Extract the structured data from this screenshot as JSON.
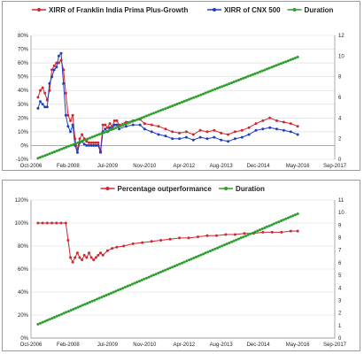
{
  "chart_data": [
    {
      "type": "line",
      "title": "",
      "legend": {
        "placement": "top",
        "entries": [
          "XIRR of Franklin India Prima Plus-Growth",
          "XIRR of CNX 500",
          "Duration"
        ]
      },
      "x_ticks": [
        "Oct-2006",
        "Feb-2008",
        "Jul-2009",
        "Nov-2010",
        "Apr-2012",
        "Aug-2013",
        "Dec-2014",
        "May-2016",
        "Sep-2017"
      ],
      "x_range": [
        "2006-10",
        "2017-09"
      ],
      "y_left": {
        "ticks": [
          "-10%",
          "0%",
          "10%",
          "20%",
          "30%",
          "40%",
          "50%",
          "60%",
          "70%",
          "80%"
        ],
        "range": [
          -10,
          80
        ]
      },
      "y_right": {
        "ticks": [
          "0",
          "2",
          "4",
          "6",
          "8",
          "10",
          "12"
        ],
        "range": [
          0,
          12
        ]
      },
      "grid": true,
      "series": [
        {
          "name": "XIRR of Franklin India Prima Plus-Growth",
          "color": "#d0282e",
          "axis": "left",
          "x": [
            "2007-01",
            "2007-02",
            "2007-03",
            "2007-04",
            "2007-05",
            "2007-06",
            "2007-07",
            "2007-08",
            "2007-09",
            "2007-10",
            "2007-11",
            "2007-12",
            "2008-01",
            "2008-02",
            "2008-03",
            "2008-04",
            "2008-05",
            "2008-06",
            "2008-07",
            "2008-08",
            "2008-09",
            "2008-10",
            "2008-11",
            "2008-12",
            "2009-01",
            "2009-02",
            "2009-03",
            "2009-04",
            "2009-05",
            "2009-06",
            "2009-07",
            "2009-08",
            "2009-09",
            "2009-10",
            "2009-11",
            "2009-12",
            "2010-03",
            "2010-06",
            "2010-09",
            "2010-11",
            "2011-02",
            "2011-05",
            "2011-08",
            "2011-11",
            "2012-02",
            "2012-05",
            "2012-08",
            "2012-11",
            "2013-02",
            "2013-05",
            "2013-08",
            "2013-11",
            "2014-02",
            "2014-05",
            "2014-08",
            "2014-11",
            "2015-02",
            "2015-05",
            "2015-08",
            "2015-11",
            "2016-02",
            "2016-05"
          ],
          "values": [
            35,
            40,
            42,
            38,
            33,
            40,
            55,
            58,
            60,
            60,
            62,
            55,
            38,
            22,
            18,
            22,
            5,
            -3,
            5,
            8,
            5,
            3,
            2,
            2,
            2,
            2,
            2,
            -4,
            15,
            15,
            13,
            16,
            14,
            18,
            18,
            15,
            17,
            18,
            19,
            16,
            15,
            14,
            12,
            10,
            9,
            10,
            8,
            11,
            10,
            11,
            9,
            8,
            10,
            11,
            13,
            16,
            18,
            20,
            18,
            17,
            16,
            14
          ]
        },
        {
          "name": "XIRR of CNX 500",
          "color": "#1f3fbf",
          "axis": "left",
          "x": [
            "2007-01",
            "2007-02",
            "2007-03",
            "2007-04",
            "2007-05",
            "2007-06",
            "2007-07",
            "2007-08",
            "2007-09",
            "2007-10",
            "2007-11",
            "2007-12",
            "2008-01",
            "2008-02",
            "2008-03",
            "2008-04",
            "2008-05",
            "2008-06",
            "2008-07",
            "2008-08",
            "2008-09",
            "2008-10",
            "2008-11",
            "2008-12",
            "2009-01",
            "2009-02",
            "2009-03",
            "2009-04",
            "2009-05",
            "2009-06",
            "2009-07",
            "2009-08",
            "2009-09",
            "2009-10",
            "2009-11",
            "2009-12",
            "2010-03",
            "2010-06",
            "2010-09",
            "2010-11",
            "2011-02",
            "2011-05",
            "2011-08",
            "2011-11",
            "2012-02",
            "2012-05",
            "2012-08",
            "2012-11",
            "2013-02",
            "2013-05",
            "2013-08",
            "2013-11",
            "2014-02",
            "2014-05",
            "2014-08",
            "2014-11",
            "2015-02",
            "2015-05",
            "2015-08",
            "2015-11",
            "2016-02",
            "2016-05"
          ],
          "values": [
            27,
            32,
            30,
            28,
            28,
            45,
            50,
            55,
            57,
            65,
            67,
            45,
            22,
            14,
            10,
            15,
            0,
            -5,
            2,
            3,
            1,
            0,
            0,
            0,
            0,
            0,
            0,
            -5,
            10,
            12,
            10,
            13,
            12,
            15,
            15,
            12,
            14,
            15,
            15,
            12,
            10,
            8,
            7,
            5,
            5,
            6,
            4,
            6,
            5,
            6,
            4,
            3,
            5,
            6,
            8,
            11,
            12,
            13,
            12,
            11,
            10,
            8
          ]
        },
        {
          "name": "Duration",
          "color": "#2e9e2e",
          "axis": "right",
          "x": [
            "2007-01",
            "2016-05"
          ],
          "values": [
            0.1,
            9.9
          ]
        }
      ]
    },
    {
      "type": "line",
      "title": "",
      "legend": {
        "placement": "top",
        "entries": [
          "Percentage outperformance",
          "Duration"
        ]
      },
      "x_ticks": [
        "Oct-2006",
        "Feb-2008",
        "Jul-2009",
        "Nov-2010",
        "Apr-2012",
        "Aug-2013",
        "Dec-2014",
        "May-2016",
        "Sep-2017"
      ],
      "x_range": [
        "2006-10",
        "2017-09"
      ],
      "y_left": {
        "ticks": [
          "0%",
          "20%",
          "40%",
          "60%",
          "80%",
          "100%",
          "120%"
        ],
        "range": [
          0,
          120
        ]
      },
      "y_right": {
        "ticks": [
          "0",
          "1",
          "2",
          "3",
          "4",
          "5",
          "6",
          "7",
          "8",
          "9",
          "10",
          "11"
        ],
        "range": [
          0,
          11
        ]
      },
      "grid": true,
      "series": [
        {
          "name": "Percentage outperformance",
          "color": "#d0282e",
          "axis": "left",
          "x": [
            "2007-01",
            "2007-03",
            "2007-05",
            "2007-07",
            "2007-09",
            "2007-11",
            "2008-01",
            "2008-02",
            "2008-03",
            "2008-04",
            "2008-05",
            "2008-06",
            "2008-07",
            "2008-08",
            "2008-09",
            "2008-10",
            "2008-11",
            "2008-12",
            "2009-01",
            "2009-02",
            "2009-03",
            "2009-04",
            "2009-05",
            "2009-07",
            "2009-09",
            "2009-11",
            "2010-02",
            "2010-06",
            "2010-10",
            "2011-02",
            "2011-06",
            "2011-10",
            "2012-02",
            "2012-06",
            "2012-10",
            "2013-02",
            "2013-06",
            "2013-10",
            "2014-02",
            "2014-06",
            "2014-10",
            "2015-02",
            "2015-06",
            "2015-10",
            "2016-02",
            "2016-05"
          ],
          "values": [
            100,
            100,
            100,
            100,
            100,
            100,
            100,
            85,
            70,
            66,
            70,
            74,
            70,
            68,
            72,
            70,
            74,
            70,
            68,
            70,
            72,
            74,
            72,
            76,
            78,
            79,
            80,
            82,
            83,
            84,
            85,
            86,
            87,
            87,
            88,
            89,
            89,
            90,
            90,
            91,
            91,
            92,
            92,
            92,
            93,
            93
          ]
        },
        {
          "name": "Duration",
          "color": "#2e9e2e",
          "axis": "right",
          "x": [
            "2007-01",
            "2016-05"
          ],
          "values": [
            1.1,
            9.9
          ]
        }
      ]
    }
  ]
}
